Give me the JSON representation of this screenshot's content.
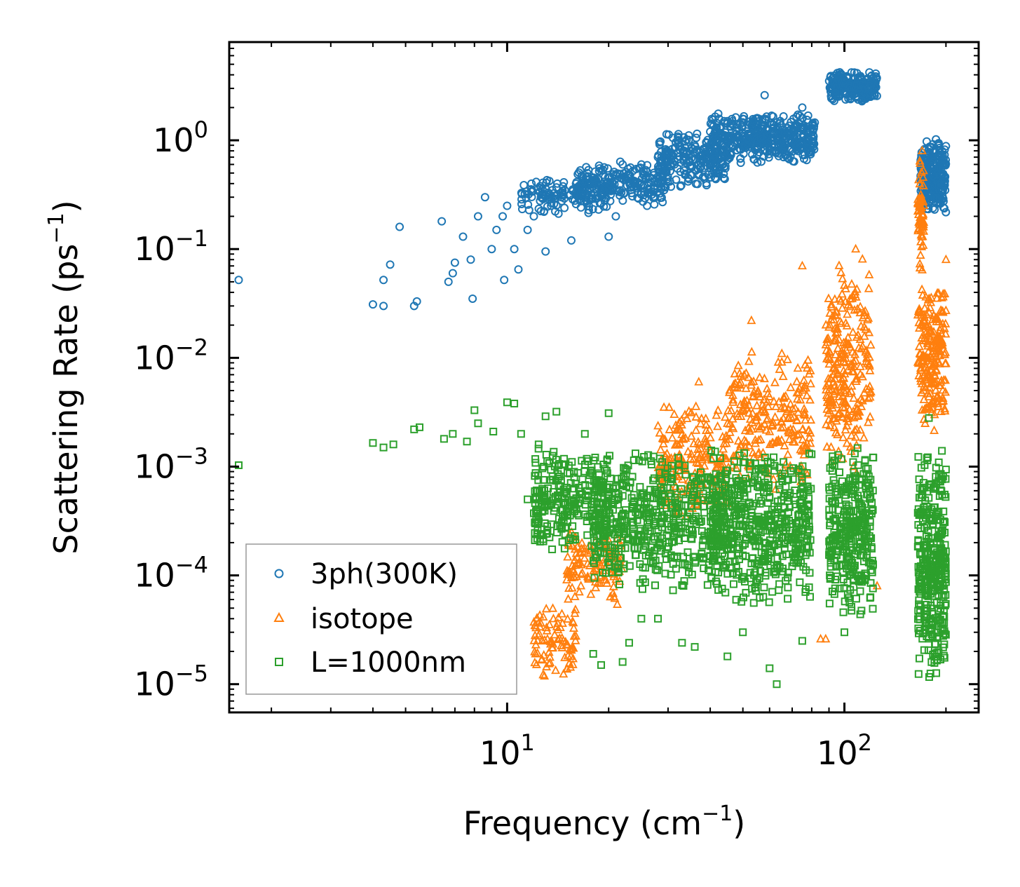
{
  "chart_data": {
    "type": "scatter",
    "xscale": "log",
    "yscale": "log",
    "xlim": [
      1.5,
      250
    ],
    "ylim": [
      5.5e-06,
      8
    ],
    "xlabel": {
      "text": "Frequency (cm",
      "sup": "−1",
      "close": ")"
    },
    "ylabel": {
      "text": "Scattering Rate (ps",
      "sup": "−1",
      "close": ")"
    },
    "x_ticks": [
      {
        "value": 10,
        "base": "10",
        "exp": "1"
      },
      {
        "value": 100,
        "base": "10",
        "exp": "2"
      }
    ],
    "y_ticks": [
      {
        "value": 1,
        "base": "10",
        "exp": "0"
      },
      {
        "value": 0.1,
        "base": "10",
        "exp": "−1"
      },
      {
        "value": 0.01,
        "base": "10",
        "exp": "−2"
      },
      {
        "value": 0.001,
        "base": "10",
        "exp": "−3"
      },
      {
        "value": 0.0001,
        "base": "10",
        "exp": "−4"
      },
      {
        "value": 1e-05,
        "base": "10",
        "exp": "−5"
      }
    ],
    "legend": {
      "position": "lower-left"
    },
    "series": [
      {
        "name": "3ph(300K)",
        "marker": "circle",
        "color": "#1f77b4",
        "points": [
          [
            1.6,
            0.052
          ],
          [
            4.0,
            0.031
          ],
          [
            4.3,
            0.03
          ],
          [
            4.3,
            0.052
          ],
          [
            4.5,
            0.072
          ],
          [
            4.8,
            0.16
          ],
          [
            5.3,
            0.03
          ],
          [
            5.4,
            0.033
          ],
          [
            6.4,
            0.18
          ],
          [
            6.7,
            0.05
          ],
          [
            6.9,
            0.06
          ],
          [
            7.0,
            0.075
          ],
          [
            7.4,
            0.13
          ],
          [
            7.8,
            0.08
          ],
          [
            7.9,
            0.035
          ],
          [
            8.2,
            0.2
          ],
          [
            8.6,
            0.3
          ],
          [
            9.0,
            0.1
          ],
          [
            9.3,
            0.15
          ],
          [
            9.7,
            0.2
          ],
          [
            9.8,
            0.052
          ],
          [
            10.0,
            0.25
          ],
          [
            10.5,
            0.1
          ],
          [
            10.8,
            0.065
          ],
          [
            11.5,
            0.15
          ],
          [
            12.0,
            0.2
          ],
          [
            12.6,
            0.3
          ],
          [
            13.0,
            0.095
          ],
          [
            13.5,
            0.25
          ],
          [
            14.5,
            0.3
          ],
          [
            15.5,
            0.12
          ],
          [
            16.0,
            0.4
          ],
          [
            18.0,
            0.45
          ],
          [
            20.0,
            0.13
          ],
          [
            21.0,
            0.2
          ],
          [
            22.0,
            0.6
          ],
          [
            24.0,
            0.4
          ],
          [
            26.0,
            0.25
          ],
          [
            28.0,
            0.7
          ],
          [
            32.0,
            0.55
          ],
          [
            36.0,
            0.9
          ],
          [
            40.0,
            1.2
          ],
          [
            45.0,
            1.5
          ],
          [
            52.0,
            1.0
          ],
          [
            58.0,
            2.6
          ],
          [
            62.0,
            0.8
          ],
          [
            66.0,
            0.7
          ],
          [
            75.0,
            2.0
          ],
          [
            80.0,
            1.3
          ]
        ],
        "bands": [
          {
            "x": [
              11,
              20
            ],
            "y": [
              0.2,
              0.5
            ],
            "n": 140
          },
          {
            "x": [
              16,
              30
            ],
            "y": [
              0.25,
              0.65
            ],
            "n": 220
          },
          {
            "x": [
              28,
              45
            ],
            "y": [
              0.35,
              1.3
            ],
            "n": 220
          },
          {
            "x": [
              40,
              60
            ],
            "y": [
              0.6,
              1.8
            ],
            "n": 220
          },
          {
            "x": [
              55,
              82
            ],
            "y": [
              0.6,
              1.8
            ],
            "n": 220
          },
          {
            "x": [
              90,
              125
            ],
            "y": [
              2.2,
              4.4
            ],
            "n": 240
          },
          {
            "x": [
              168,
              200
            ],
            "y": [
              0.2,
              1.1
            ],
            "n": 260
          }
        ]
      },
      {
        "name": "isotope",
        "marker": "triangle",
        "color": "#ff7f0e",
        "points": [
          [
            75.0,
            0.07
          ],
          [
            85.0,
            2.6e-05
          ],
          [
            88.0,
            2.6e-05
          ],
          [
            125.0,
            8e-05
          ],
          [
            37.0,
            0.006
          ],
          [
            53.0,
            0.022
          ],
          [
            78.0,
            0.0095
          ],
          [
            108.0,
            0.1
          ],
          [
            170.0,
            0.8
          ],
          [
            175.0,
            0.025
          ],
          [
            185.0,
            0.003
          ],
          [
            200.0,
            0.08
          ]
        ],
        "bands": [
          {
            "x": [
              12,
              16
            ],
            "y": [
              1e-05,
              6e-05
            ],
            "n": 90
          },
          {
            "x": [
              15,
              22
            ],
            "y": [
              5e-05,
              0.0003
            ],
            "n": 120
          },
          {
            "x": [
              28,
              45
            ],
            "y": [
              0.0003,
              0.004
            ],
            "n": 200
          },
          {
            "x": [
              45,
              80
            ],
            "y": [
              0.0006,
              0.012
            ],
            "n": 240
          },
          {
            "x": [
              88,
              120
            ],
            "y": [
              0.0008,
              0.09
            ],
            "n": 260
          },
          {
            "x": [
              165,
              200
            ],
            "y": [
              0.002,
              0.05
            ],
            "n": 220
          },
          {
            "x": [
              165,
              172
            ],
            "y": [
              0.05,
              0.8
            ],
            "n": 60
          }
        ]
      },
      {
        "name": "L=1000nm",
        "marker": "square",
        "color": "#2ca02c",
        "points": [
          [
            1.6,
            0.00103
          ],
          [
            4.0,
            0.00165
          ],
          [
            4.3,
            0.0015
          ],
          [
            4.6,
            0.0016
          ],
          [
            5.3,
            0.0022
          ],
          [
            5.5,
            0.0023
          ],
          [
            6.5,
            0.0018
          ],
          [
            6.9,
            0.002
          ],
          [
            7.6,
            0.0017
          ],
          [
            8.0,
            0.0033
          ],
          [
            8.2,
            0.0025
          ],
          [
            9.1,
            0.0021
          ],
          [
            10.0,
            0.0039
          ],
          [
            10.5,
            0.0038
          ],
          [
            11.0,
            0.002
          ],
          [
            11.5,
            0.0005
          ],
          [
            12.4,
            0.0016
          ],
          [
            13.0,
            0.0029
          ],
          [
            14.0,
            0.0032
          ],
          [
            17.0,
            0.002
          ],
          [
            18.0,
            1.9e-05
          ],
          [
            19.0,
            1.5e-05
          ],
          [
            20.0,
            0.0031
          ],
          [
            22.0,
            1.6e-05
          ],
          [
            23.0,
            2.4e-05
          ],
          [
            25.0,
            4e-05
          ],
          [
            28.0,
            4e-05
          ],
          [
            33.0,
            2.4e-05
          ],
          [
            36.0,
            2.2e-05
          ],
          [
            45.0,
            1.8e-05
          ],
          [
            50.0,
            3e-05
          ],
          [
            60.0,
            1.4e-05
          ],
          [
            63.0,
            1e-05
          ],
          [
            75.0,
            2.5e-05
          ],
          [
            100.0,
            3e-05
          ],
          [
            120.0,
            0.00022
          ],
          [
            178.0,
            0.0028
          ]
        ],
        "bands": [
          {
            "x": [
              12,
              20
            ],
            "y": [
              0.00015,
              0.0015
            ],
            "n": 260
          },
          {
            "x": [
              18,
              45
            ],
            "y": [
              6e-05,
              0.0016
            ],
            "n": 520
          },
          {
            "x": [
              40,
              80
            ],
            "y": [
              5e-05,
              0.0018
            ],
            "n": 520
          },
          {
            "x": [
              90,
              122
            ],
            "y": [
              4e-05,
              0.0016
            ],
            "n": 320
          },
          {
            "x": [
              165,
              200
            ],
            "y": [
              1e-05,
              0.0016
            ],
            "n": 340
          }
        ]
      }
    ]
  }
}
